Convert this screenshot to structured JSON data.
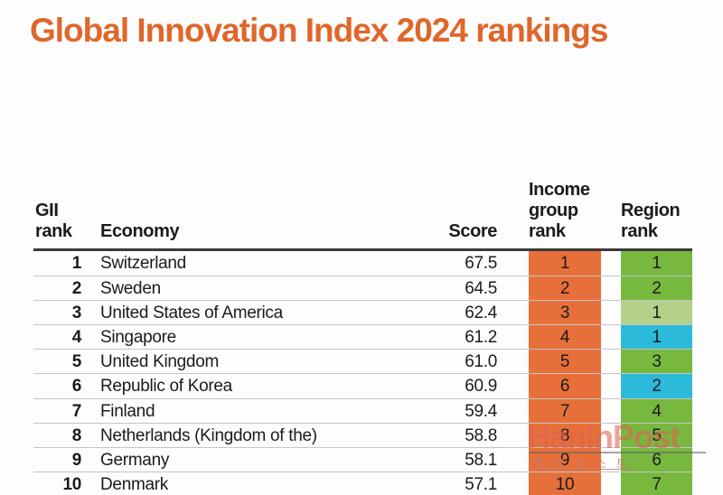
{
  "title": "Global Innovation Index 2024 rankings",
  "colors": {
    "title": "#e0662a",
    "income_cell": "#e7703a",
    "green": "#77b83f",
    "light_green": "#b4d189",
    "blue": "#2bbad9",
    "header_border": "#3a3a3a",
    "row_separator": "#c5c5c5"
  },
  "table": {
    "headers": {
      "gii_rank_lines": [
        "GII",
        "rank"
      ],
      "economy": "Economy",
      "score": "Score",
      "income_group_rank_lines": [
        "Income",
        "group",
        "rank"
      ],
      "region_rank_lines": [
        "Region",
        "rank"
      ]
    },
    "rows": [
      {
        "gii_rank": "1",
        "economy": "Switzerland",
        "score": "67.5",
        "income_group_rank": "1",
        "region_rank": "1",
        "region_color": "green"
      },
      {
        "gii_rank": "2",
        "economy": "Sweden",
        "score": "64.5",
        "income_group_rank": "2",
        "region_rank": "2",
        "region_color": "green"
      },
      {
        "gii_rank": "3",
        "economy": "United States of America",
        "score": "62.4",
        "income_group_rank": "3",
        "region_rank": "1",
        "region_color": "light_green"
      },
      {
        "gii_rank": "4",
        "economy": "Singapore",
        "score": "61.2",
        "income_group_rank": "4",
        "region_rank": "1",
        "region_color": "blue"
      },
      {
        "gii_rank": "5",
        "economy": "United Kingdom",
        "score": "61.0",
        "income_group_rank": "5",
        "region_rank": "3",
        "region_color": "green"
      },
      {
        "gii_rank": "6",
        "economy": "Republic of Korea",
        "score": "60.9",
        "income_group_rank": "6",
        "region_rank": "2",
        "region_color": "blue"
      },
      {
        "gii_rank": "7",
        "economy": "Finland",
        "score": "59.4",
        "income_group_rank": "7",
        "region_rank": "4",
        "region_color": "green"
      },
      {
        "gii_rank": "8",
        "economy": "Netherlands (Kingdom of the)",
        "score": "58.8",
        "income_group_rank": "8",
        "region_rank": "5",
        "region_color": "green"
      },
      {
        "gii_rank": "9",
        "economy": "Germany",
        "score": "58.1",
        "income_group_rank": "9",
        "region_rank": "6",
        "region_color": "green"
      },
      {
        "gii_rank": "10",
        "economy": "Denmark",
        "score": "57.1",
        "income_group_rank": "10",
        "region_rank": "7",
        "region_color": "green"
      }
    ]
  },
  "watermark": {
    "logo": "HanInPost",
    "subtext": "한인포스트"
  },
  "chart_data": {
    "type": "table",
    "title": "Global Innovation Index 2024 rankings",
    "columns": [
      "GII rank",
      "Economy",
      "Score",
      "Income group rank",
      "Region rank"
    ],
    "rows": [
      [
        1,
        "Switzerland",
        67.5,
        1,
        1
      ],
      [
        2,
        "Sweden",
        64.5,
        2,
        2
      ],
      [
        3,
        "United States of America",
        62.4,
        3,
        1
      ],
      [
        4,
        "Singapore",
        61.2,
        4,
        1
      ],
      [
        5,
        "United Kingdom",
        61.0,
        5,
        3
      ],
      [
        6,
        "Republic of Korea",
        60.9,
        6,
        2
      ],
      [
        7,
        "Finland",
        59.4,
        7,
        4
      ],
      [
        8,
        "Netherlands (Kingdom of the)",
        58.8,
        8,
        5
      ],
      [
        9,
        "Germany",
        58.1,
        9,
        6
      ],
      [
        10,
        "Denmark",
        57.1,
        10,
        7
      ]
    ]
  }
}
